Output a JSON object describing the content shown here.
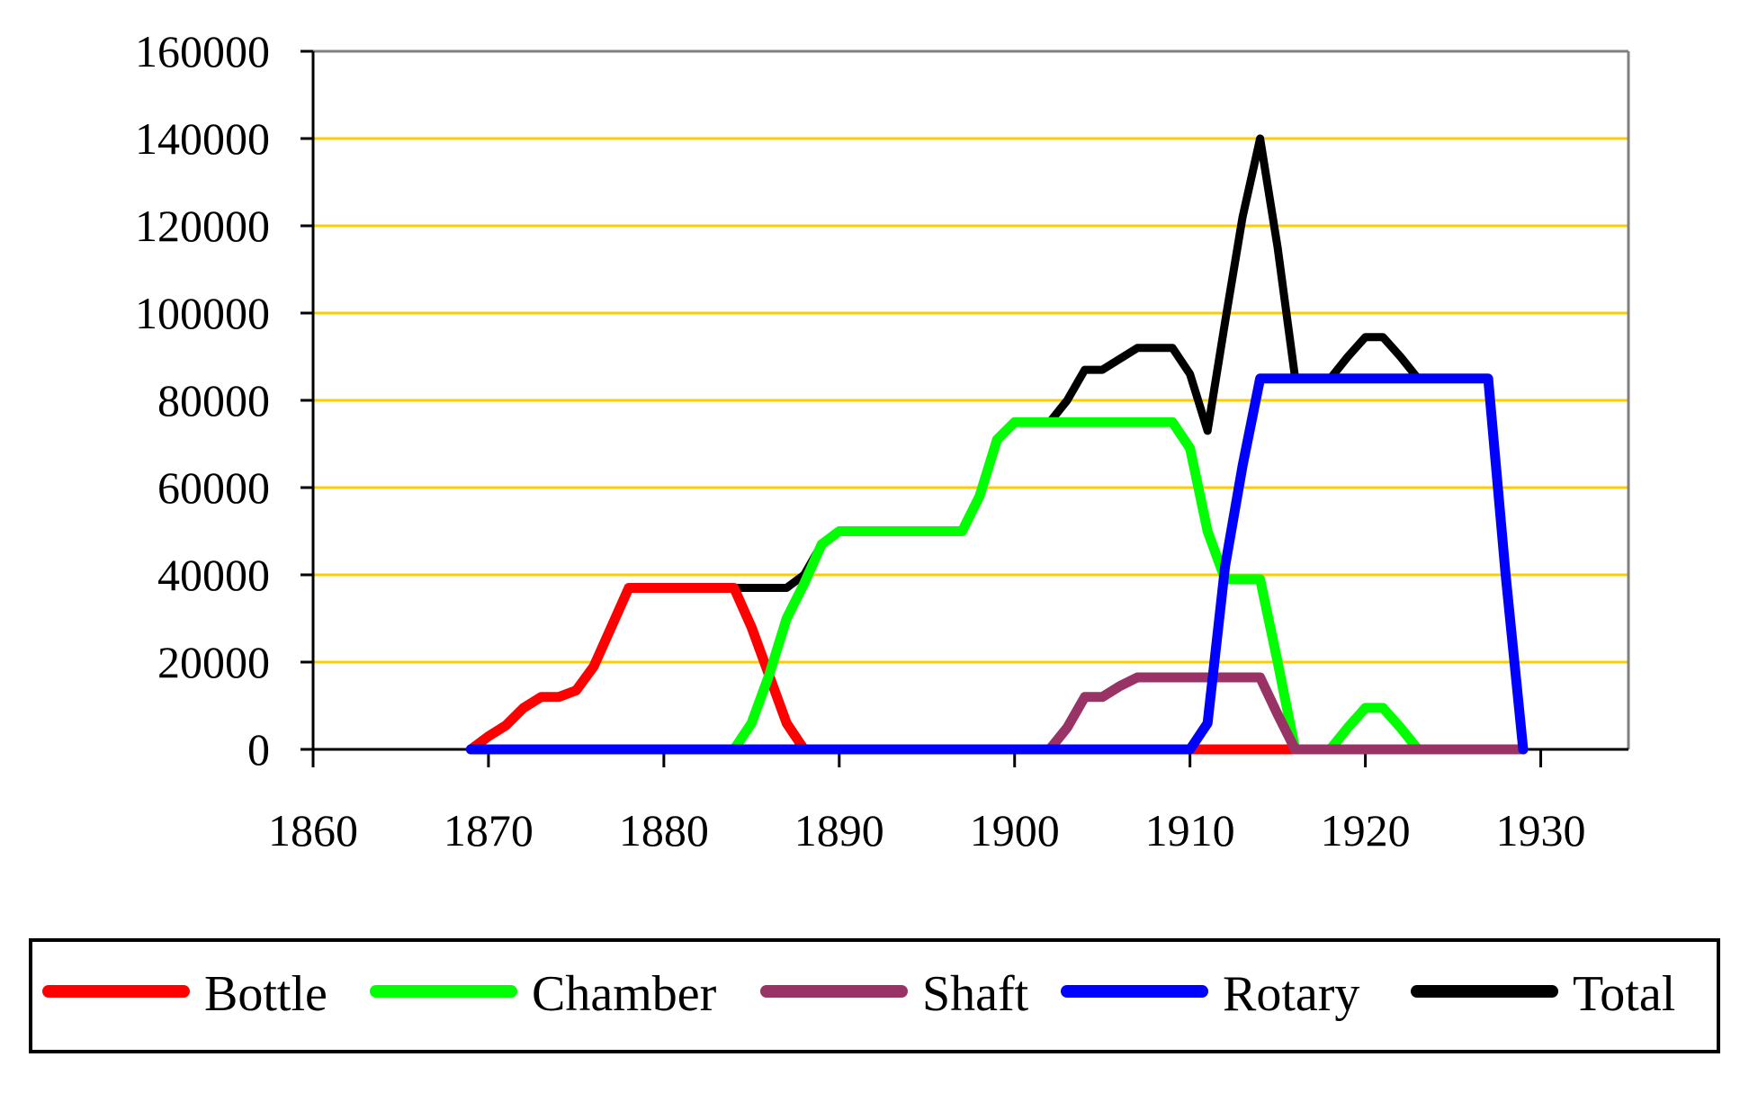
{
  "chart_data": {
    "type": "line",
    "title": "",
    "xlabel": "",
    "ylabel": "",
    "xlim": [
      1860,
      1935
    ],
    "ylim": [
      0,
      160000
    ],
    "x_ticks": [
      "1860",
      "1870",
      "1880",
      "1890",
      "1900",
      "1910",
      "1920",
      "1930"
    ],
    "y_ticks": [
      "0",
      "20000",
      "40000",
      "60000",
      "80000",
      "100000",
      "120000",
      "140000",
      "160000"
    ],
    "grid": true,
    "legend_position": "bottom",
    "series": [
      {
        "name": "Bottle",
        "color": "#ff0000",
        "points": [
          [
            1869,
            0
          ],
          [
            1870,
            3000
          ],
          [
            1871,
            5500
          ],
          [
            1872,
            9500
          ],
          [
            1873,
            12000
          ],
          [
            1874,
            12000
          ],
          [
            1875,
            13500
          ],
          [
            1876,
            19000
          ],
          [
            1877,
            28000
          ],
          [
            1878,
            37000
          ],
          [
            1884,
            37000
          ],
          [
            1885,
            28000
          ],
          [
            1886,
            17000
          ],
          [
            1887,
            6000
          ],
          [
            1888,
            0
          ],
          [
            1929,
            0
          ]
        ]
      },
      {
        "name": "Chamber",
        "color": "#00ff00",
        "points": [
          [
            1869,
            0
          ],
          [
            1884,
            0
          ],
          [
            1885,
            6000
          ],
          [
            1886,
            17000
          ],
          [
            1887,
            30000
          ],
          [
            1888,
            38000
          ],
          [
            1889,
            47000
          ],
          [
            1890,
            50000
          ],
          [
            1897,
            50000
          ],
          [
            1898,
            58000
          ],
          [
            1899,
            71000
          ],
          [
            1900,
            75000
          ],
          [
            1909,
            75000
          ],
          [
            1910,
            69000
          ],
          [
            1911,
            50000
          ],
          [
            1912,
            39000
          ],
          [
            1914,
            39000
          ],
          [
            1915,
            20000
          ],
          [
            1916,
            0
          ],
          [
            1918,
            0
          ],
          [
            1919,
            5000
          ],
          [
            1920,
            9500
          ],
          [
            1921,
            9500
          ],
          [
            1922,
            5000
          ],
          [
            1923,
            0
          ],
          [
            1929,
            0
          ]
        ]
      },
      {
        "name": "Shaft",
        "color": "#993366",
        "points": [
          [
            1869,
            0
          ],
          [
            1902,
            0
          ],
          [
            1903,
            5000
          ],
          [
            1904,
            12000
          ],
          [
            1905,
            12000
          ],
          [
            1906,
            14500
          ],
          [
            1907,
            16500
          ],
          [
            1914,
            16500
          ],
          [
            1915,
            8000
          ],
          [
            1916,
            0
          ],
          [
            1929,
            0
          ]
        ]
      },
      {
        "name": "Rotary",
        "color": "#0000ff",
        "points": [
          [
            1869,
            0
          ],
          [
            1910,
            0
          ],
          [
            1911,
            6000
          ],
          [
            1912,
            42000
          ],
          [
            1913,
            65000
          ],
          [
            1914,
            85000
          ],
          [
            1927,
            85000
          ],
          [
            1928,
            40000
          ],
          [
            1929,
            0
          ]
        ]
      },
      {
        "name": "Total",
        "color": "#000000",
        "points": [
          [
            1869,
            0
          ],
          [
            1870,
            3000
          ],
          [
            1871,
            5500
          ],
          [
            1872,
            9500
          ],
          [
            1873,
            12000
          ],
          [
            1874,
            12000
          ],
          [
            1875,
            13500
          ],
          [
            1876,
            19000
          ],
          [
            1877,
            28000
          ],
          [
            1878,
            37000
          ],
          [
            1887,
            37000
          ],
          [
            1888,
            40000
          ],
          [
            1889,
            47000
          ],
          [
            1890,
            50000
          ],
          [
            1897,
            50000
          ],
          [
            1898,
            58000
          ],
          [
            1899,
            71000
          ],
          [
            1900,
            75000
          ],
          [
            1902,
            75000
          ],
          [
            1903,
            80000
          ],
          [
            1904,
            87000
          ],
          [
            1905,
            87000
          ],
          [
            1906,
            89500
          ],
          [
            1907,
            92000
          ],
          [
            1909,
            92000
          ],
          [
            1910,
            86000
          ],
          [
            1911,
            73000
          ],
          [
            1912,
            98000
          ],
          [
            1913,
            122000
          ],
          [
            1914,
            140000
          ],
          [
            1915,
            115000
          ],
          [
            1916,
            85000
          ],
          [
            1918,
            85000
          ],
          [
            1919,
            90000
          ],
          [
            1920,
            94500
          ],
          [
            1921,
            94500
          ],
          [
            1922,
            90000
          ],
          [
            1923,
            85000
          ],
          [
            1927,
            85000
          ],
          [
            1928,
            40000
          ],
          [
            1929,
            0
          ]
        ]
      }
    ]
  }
}
